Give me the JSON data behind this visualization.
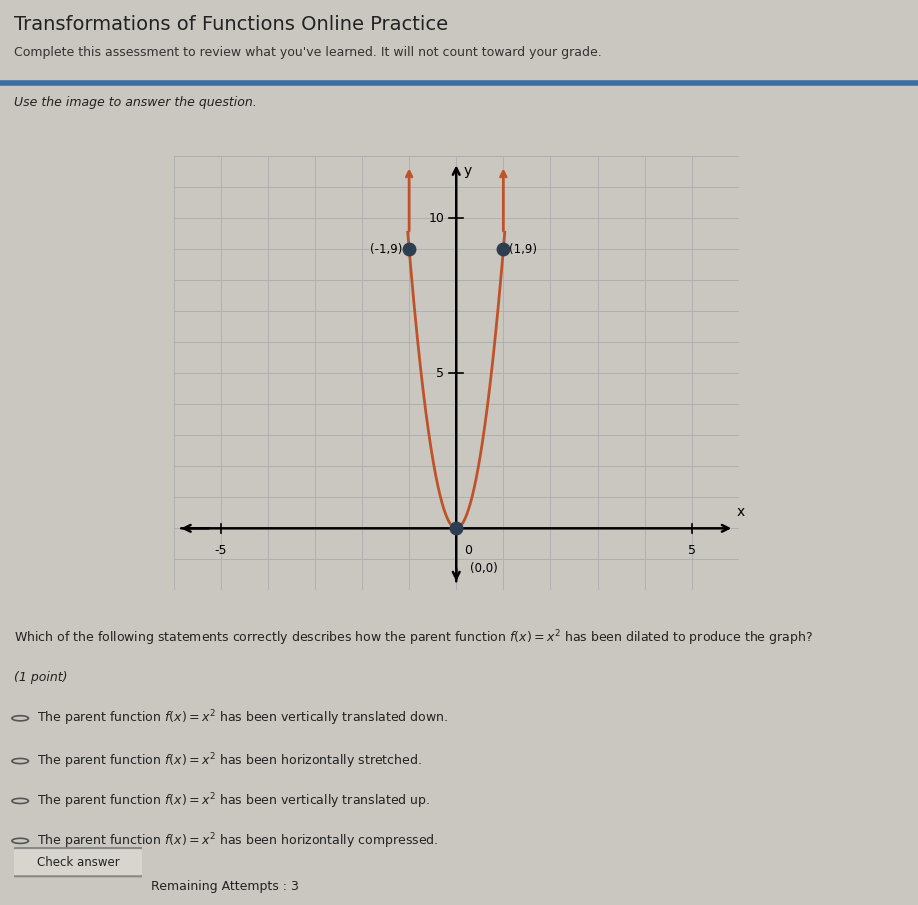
{
  "page_title": "Transformations of Functions Online Practice",
  "page_subtitle": "Complete this assessment to review what you've learned. It will not count toward your grade.",
  "instruction": "Use the image to answer the question.",
  "graph": {
    "xlim": [
      -6,
      6
    ],
    "ylim": [
      -2,
      12
    ],
    "xlabel": "x",
    "ylabel": "y",
    "curve_color": "#c0522a",
    "curve_coefficient": 9,
    "point_color": "#2c3e50",
    "grid_color": "#b0b0b0",
    "grid_bg": "#c8c4bb",
    "plot_x_min": -1.05,
    "plot_x_max": 1.05,
    "y_tick_labels": {
      "5": 5,
      "10": 10
    },
    "x_tick_labels": {
      "-5": -5,
      "0": 0,
      "5": 5
    }
  },
  "question": "Which of the following statements correctly describes how the parent function f(x) = x² has been dilated to produce the graph?",
  "point_label": "(1 point)",
  "options": [
    "The parent function f(x) = x² has been vertically translated down.",
    "The parent function f(x) = x² has been horizontally stretched.",
    "The parent function f(x) = x² has been vertically translated up.",
    "The parent function f(x) = x² has been horizontally compressed."
  ],
  "button_text": "Check answer",
  "attempts_text": "Remaining Attempts : 3",
  "header_bg": "#e8e5df",
  "header_border_color": "#3a6ea5",
  "page_bg": "#cac7c0",
  "graph_outer_bg": "#c8c4bb",
  "graph_inner_bg": "#cac7c1",
  "text_color": "#222222",
  "subtitle_color": "#333333"
}
